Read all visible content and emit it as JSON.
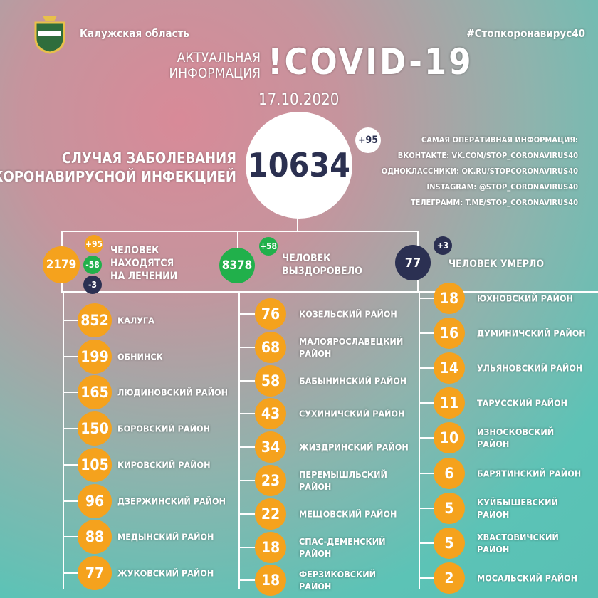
{
  "header": {
    "region": "Калужская область",
    "hashtag": "#Стопкоронавирус40",
    "title_lines": [
      "АКТУАЛЬНАЯ",
      "ИНФОРМАЦИЯ"
    ],
    "title_big": "!COVID-19",
    "date": "17.10.2020"
  },
  "total": {
    "label_lines": [
      "СЛУЧАЯ ЗАБОЛЕВАНИЯ",
      "КОРОНАВИРУСНОЙ ИНФЕКЦИЕЙ"
    ],
    "value": 10634,
    "delta": "+95"
  },
  "info": [
    "САМАЯ ОПЕРАТИВНАЯ ИНФОРМАЦИЯ:",
    "ВКОНТАКТЕ: VK.COM/STOP_CORONAVIRUS40",
    "ОДНОКЛАССНИКИ: OK.RU/STOPCORONAVIRUS40",
    "INSTAGRAM: @STOP_CORONAVIRUS40",
    "ТЕЛЕГРАММ: T.ME/STOP_CORONAVIRUS40"
  ],
  "stats": {
    "treatment": {
      "value": 2179,
      "deltas": [
        "+95",
        "-58",
        "-3"
      ],
      "label_lines": [
        "ЧЕЛОВЕК",
        "НАХОДЯТСЯ",
        "НА ЛЕЧЕНИИ"
      ]
    },
    "recovered": {
      "value": 8378,
      "delta": "+58",
      "label_lines": [
        "ЧЕЛОВЕК",
        "ВЫЗДОРОВЕЛО"
      ]
    },
    "died": {
      "value": 77,
      "delta": "+3",
      "label": "ЧЕЛОВЕК УМЕРЛО"
    }
  },
  "districts": [
    [
      {
        "value": 852,
        "name": "КАЛУГА"
      },
      {
        "value": 199,
        "name": "ОБНИНСК"
      },
      {
        "value": 165,
        "name": "ЛЮДИНОВСКИЙ РАЙОН"
      },
      {
        "value": 150,
        "name": "БОРОВСКИЙ РАЙОН"
      },
      {
        "value": 105,
        "name": "КИРОВСКИЙ РАЙОН"
      },
      {
        "value": 96,
        "name": "ДЗЕРЖИНСКИЙ РАЙОН"
      },
      {
        "value": 88,
        "name": "МЕДЫНСКИЙ РАЙОН"
      },
      {
        "value": 77,
        "name": "ЖУКОВСКИЙ РАЙОН"
      }
    ],
    [
      {
        "value": 76,
        "name": "КОЗЕЛЬСКИЙ РАЙОН"
      },
      {
        "value": 68,
        "name": "МАЛОЯРОСЛАВЕЦКИЙ РАЙОН"
      },
      {
        "value": 58,
        "name": "БАБЫНИНСКИЙ РАЙОН"
      },
      {
        "value": 43,
        "name": "СУХИНИЧСКИЙ РАЙОН"
      },
      {
        "value": 34,
        "name": "ЖИЗДРИНСКИЙ РАЙОН"
      },
      {
        "value": 23,
        "name": "ПЕРЕМЫШЛЬСКИЙ РАЙОН"
      },
      {
        "value": 22,
        "name": "МЕЩОВСКИЙ РАЙОН"
      },
      {
        "value": 18,
        "name": "СПАС-ДЕМЕНСКИЙ РАЙОН"
      },
      {
        "value": 18,
        "name": "ФЕРЗИКОВСКИЙ РАЙОН"
      }
    ],
    [
      {
        "value": 18,
        "name": "ЮХНОВСКИЙ РАЙОН"
      },
      {
        "value": 16,
        "name": "ДУМИНИЧСКИЙ РАЙОН"
      },
      {
        "value": 14,
        "name": "УЛЬЯНОВСКИЙ РАЙОН"
      },
      {
        "value": 11,
        "name": "ТАРУССКИЙ РАЙОН"
      },
      {
        "value": 10,
        "name": "ИЗНОСКОВСКИЙ РАЙОН"
      },
      {
        "value": 6,
        "name": "БАРЯТИНСКИЙ РАЙОН"
      },
      {
        "value": 5,
        "name": "КУЙБЫШЕВСКИЙ РАЙОН"
      },
      {
        "value": 5,
        "name": "ХВАСТОВИЧСКИЙ РАЙОН"
      },
      {
        "value": 2,
        "name": "МОСАЛЬСКИЙ РАЙОН"
      }
    ]
  ]
}
